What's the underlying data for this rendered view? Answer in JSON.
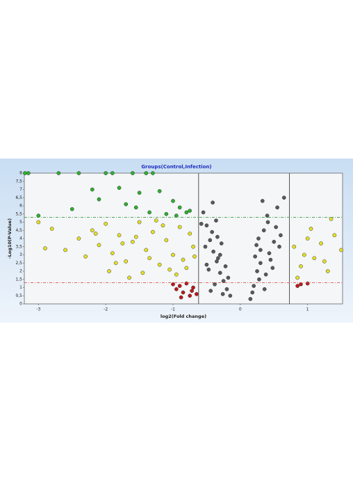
{
  "chart_data": {
    "type": "scatter",
    "title": "Groups(Control,Infection)",
    "x_label": "log2(Fold change)",
    "y_label": "-Log10(P-Value)",
    "xlim": [
      -3.21,
      1.52
    ],
    "ylim": [
      0,
      8
    ],
    "xticks": [
      -3,
      -2,
      -1,
      0,
      1
    ],
    "yticks": [
      0,
      {
        "value": 0.5,
        "label": "0,5"
      },
      1,
      {
        "value": 1.5,
        "label": "1,5"
      },
      2,
      {
        "value": 2.5,
        "label": "2,5"
      },
      3,
      {
        "value": 3.5,
        "label": "3,5"
      },
      4,
      {
        "value": 4.5,
        "label": "4,5"
      },
      5,
      {
        "value": 5.5,
        "label": "5,5"
      },
      6,
      {
        "value": 6.5,
        "label": "6,5"
      },
      7,
      {
        "value": 7.5,
        "label": "7,5"
      },
      8
    ],
    "vlines": [
      -0.62,
      0.73
    ],
    "hlines": [
      {
        "value": 1.3,
        "color": "#e05050"
      },
      {
        "value": 5.3,
        "color": "#3a9a3a"
      }
    ],
    "series": [
      {
        "color": "#595959",
        "x": [
          -0.55,
          -0.5,
          -0.45,
          -0.4,
          -0.35,
          -0.3,
          -0.25,
          -0.2,
          -0.15,
          -0.52,
          -0.47,
          -0.42,
          -0.38,
          -0.33,
          -0.28,
          -0.22,
          -0.18,
          -0.58,
          -0.44,
          -0.36,
          -0.3,
          -0.26,
          -0.5,
          -0.41,
          -0.34,
          0.15,
          0.2,
          0.25,
          0.3,
          0.35,
          0.4,
          0.45,
          0.5,
          0.55,
          0.6,
          0.18,
          0.22,
          0.28,
          0.33,
          0.38,
          0.43,
          0.48,
          0.53,
          0.58,
          0.65,
          0.27,
          0.36,
          0.41,
          0.3,
          0.24
        ],
        "values": [
          5.6,
          4.8,
          3.9,
          3.2,
          2.6,
          1.9,
          1.4,
          0.9,
          0.5,
          3.5,
          2.1,
          4.4,
          1.2,
          2.8,
          3.7,
          2.3,
          1.6,
          4.9,
          0.8,
          5.1,
          3.0,
          0.6,
          2.4,
          6.2,
          4.1,
          0.3,
          1.1,
          2.0,
          3.3,
          4.5,
          5.4,
          2.7,
          3.8,
          5.9,
          4.2,
          0.7,
          2.9,
          1.5,
          6.3,
          1.8,
          3.1,
          2.2,
          4.7,
          3.5,
          6.5,
          4.0,
          0.9,
          5.0,
          2.5,
          3.6
        ]
      },
      {
        "color": "#e6e024",
        "x": [
          -2.6,
          -2.4,
          -2.3,
          -2.2,
          -2.1,
          -2.0,
          -1.9,
          -1.8,
          -1.7,
          -1.6,
          -1.5,
          -1.4,
          -1.3,
          -1.2,
          -1.1,
          -1.0,
          -0.9,
          -0.8,
          -0.7,
          -2.8,
          -1.95,
          -1.75,
          -1.55,
          -1.35,
          -1.15,
          -0.95,
          -0.75,
          -1.65,
          -1.25,
          -0.85,
          -2.15,
          -1.45,
          -1.05,
          -0.68,
          -1.85,
          -3.0,
          -2.9,
          0.8,
          0.9,
          1.0,
          1.1,
          1.2,
          1.3,
          1.4,
          1.5,
          0.85,
          1.05,
          1.25,
          0.95,
          1.35
        ],
        "values": [
          3.3,
          4.0,
          2.9,
          4.5,
          3.6,
          4.9,
          3.1,
          4.2,
          2.6,
          3.8,
          5.0,
          3.3,
          4.4,
          2.4,
          3.9,
          3.0,
          4.7,
          2.2,
          3.5,
          4.6,
          2.0,
          3.7,
          4.1,
          2.8,
          4.8,
          1.8,
          4.3,
          1.6,
          5.1,
          2.7,
          4.3,
          1.9,
          2.1,
          2.9,
          2.5,
          5.0,
          3.4,
          3.5,
          2.3,
          4.0,
          2.8,
          3.7,
          2.0,
          4.2,
          3.3,
          1.6,
          4.6,
          2.6,
          3.0,
          5.2
        ]
      },
      {
        "color": "#2eb02e",
        "x": [
          -3.2,
          -3.15,
          -2.7,
          -2.4,
          -2.0,
          -1.9,
          -1.6,
          -1.4,
          -1.3,
          -2.2,
          -1.8,
          -1.5,
          -1.2,
          -1.0,
          -0.9,
          -0.8,
          -2.5,
          -1.7,
          -1.1,
          -0.75,
          -2.1,
          -1.35,
          -0.95,
          -3.0,
          -1.55
        ],
        "values": [
          8,
          8,
          8,
          8,
          8,
          8,
          8,
          8,
          8,
          7.0,
          7.1,
          6.8,
          6.9,
          6.3,
          5.9,
          5.6,
          5.8,
          6.1,
          5.5,
          5.7,
          6.4,
          5.6,
          5.4,
          5.4,
          5.9
        ]
      },
      {
        "color": "#c01818",
        "x": [
          -1.0,
          -0.95,
          -0.9,
          -0.85,
          -0.8,
          -0.75,
          -0.7,
          -0.65,
          -0.88,
          -0.72,
          0.85,
          0.9,
          1.0
        ],
        "values": [
          1.2,
          0.9,
          1.1,
          0.7,
          1.25,
          0.5,
          1.0,
          0.6,
          0.4,
          0.8,
          1.1,
          1.2,
          1.25
        ]
      }
    ]
  }
}
